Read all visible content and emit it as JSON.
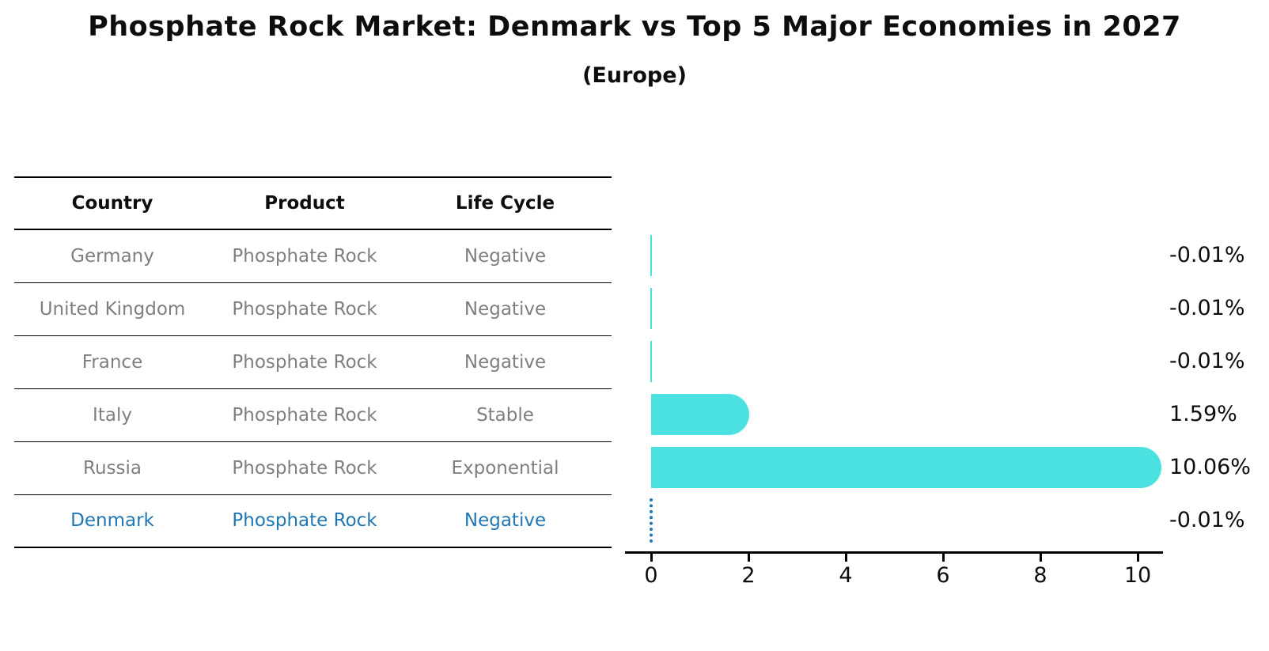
{
  "title": "Phosphate Rock Market: Denmark vs Top 5 Major Economies in 2027",
  "subtitle": "(Europe)",
  "table": {
    "headers": [
      "Country",
      "Product",
      "Life Cycle"
    ],
    "rows": [
      {
        "country": "Germany",
        "product": "Phosphate Rock",
        "life_cycle": "Negative",
        "highlighted": false
      },
      {
        "country": "United Kingdom",
        "product": "Phosphate Rock",
        "life_cycle": "Negative",
        "highlighted": false
      },
      {
        "country": "France",
        "product": "Phosphate Rock",
        "life_cycle": "Negative",
        "highlighted": false
      },
      {
        "country": "Italy",
        "product": "Phosphate Rock",
        "life_cycle": "Stable",
        "highlighted": false
      },
      {
        "country": "Russia",
        "product": "Phosphate Rock",
        "life_cycle": "Exponential",
        "highlighted": false
      },
      {
        "country": "Denmark",
        "product": "Phosphate Rock",
        "life_cycle": "Negative",
        "highlighted": true
      }
    ]
  },
  "chart_data": {
    "type": "bar",
    "orientation": "horizontal",
    "title": "Phosphate Rock Market: Denmark vs Top 5 Major Economies in 2027",
    "subtitle": "(Europe)",
    "categories": [
      "Germany",
      "United Kingdom",
      "France",
      "Italy",
      "Russia",
      "Denmark"
    ],
    "values": [
      -0.01,
      -0.01,
      -0.01,
      1.59,
      10.06,
      -0.01
    ],
    "value_labels": [
      "-0.01%",
      "-0.01%",
      "-0.01%",
      "1.59%",
      "10.06%",
      "-0.01%"
    ],
    "x_ticks": [
      0,
      2,
      4,
      6,
      8,
      10
    ],
    "xlim": [
      0,
      10.5
    ],
    "highlight_index": 5,
    "grid": false,
    "legend": false
  },
  "colors": {
    "bar": "#4ce1e1",
    "highlight": "#1f77b4",
    "row_text": "#7f7f7f",
    "text": "#0d0d0d"
  }
}
